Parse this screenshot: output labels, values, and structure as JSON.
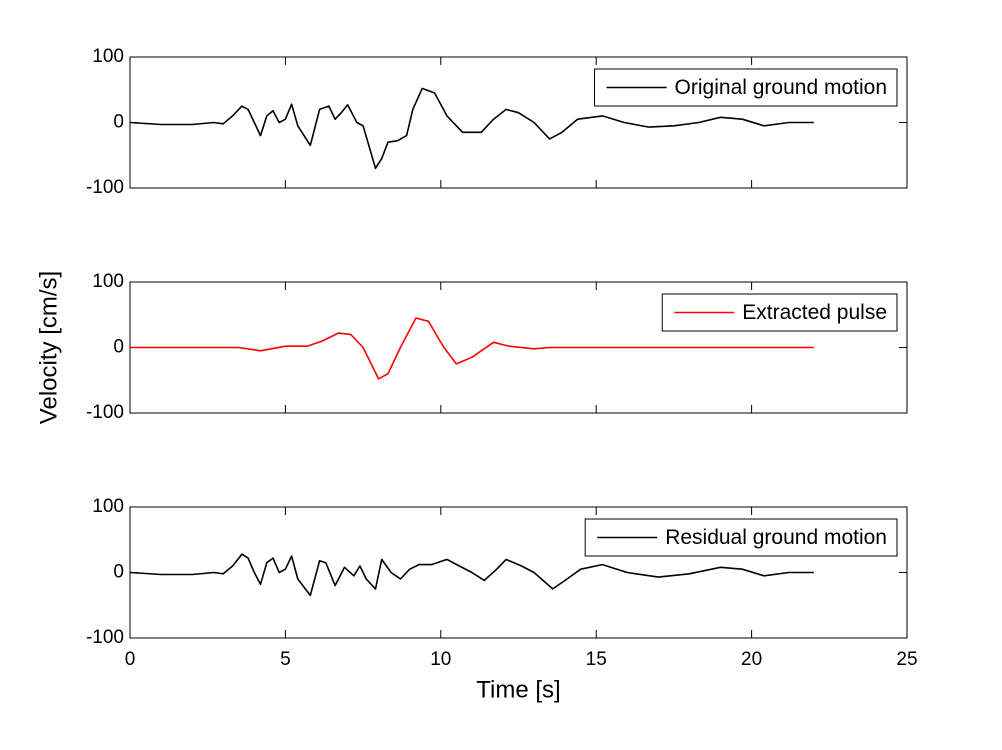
{
  "chart_data": [
    {
      "type": "line",
      "x": [
        0,
        1,
        2,
        2.7,
        3,
        3.3,
        3.6,
        3.8,
        4.0,
        4.2,
        4.4,
        4.6,
        4.8,
        5.0,
        5.2,
        5.4,
        5.8,
        6.1,
        6.4,
        6.6,
        6.8,
        7.0,
        7.3,
        7.5,
        7.9,
        8.1,
        8.3,
        8.6,
        8.9,
        9.1,
        9.4,
        9.8,
        10.2,
        10.4,
        10.7,
        11.3,
        11.7,
        12.1,
        12.5,
        13.0,
        13.5,
        13.9,
        14.4,
        15.2,
        15.9,
        16.7,
        17.5,
        18.3,
        19.0,
        19.7,
        20.4,
        21.2,
        22
      ],
      "series": [
        {
          "name": "Original ground motion",
          "color": "#000000",
          "values": [
            0,
            -3,
            -3,
            0,
            -2,
            10,
            25,
            20,
            0,
            -20,
            10,
            18,
            0,
            5,
            28,
            -5,
            -35,
            20,
            25,
            5,
            15,
            27,
            0,
            -5,
            -70,
            -55,
            -30,
            -28,
            -20,
            20,
            52,
            45,
            10,
            0,
            -15,
            -15,
            5,
            20,
            15,
            0,
            -25,
            -15,
            5,
            10,
            0,
            -7,
            -5,
            0,
            8,
            5,
            -5,
            0,
            0
          ]
        }
      ],
      "xlim": [
        0,
        25
      ],
      "ylim": [
        -100,
        100
      ],
      "yticks": [
        -100,
        0,
        100
      ],
      "legend": "upper right"
    },
    {
      "type": "line",
      "x": [
        0,
        3.5,
        4.2,
        5.0,
        5.7,
        6.2,
        6.7,
        7.1,
        7.5,
        8.0,
        8.3,
        8.7,
        9.2,
        9.6,
        10.1,
        10.5,
        11.0,
        11.7,
        12.2,
        13.0,
        13.5,
        22
      ],
      "series": [
        {
          "name": "Extracted pulse",
          "color": "#ff0000",
          "values": [
            0,
            0,
            -5,
            2,
            2,
            10,
            22,
            20,
            0,
            -48,
            -40,
            0,
            45,
            40,
            0,
            -25,
            -15,
            8,
            2,
            -2,
            0,
            0
          ]
        }
      ],
      "xlim": [
        0,
        25
      ],
      "ylim": [
        -100,
        100
      ],
      "yticks": [
        -100,
        0,
        100
      ],
      "legend": "upper right",
      "ylabel": "Velocity [cm/s]"
    },
    {
      "type": "line",
      "x": [
        0,
        1,
        2,
        2.7,
        3,
        3.3,
        3.6,
        3.8,
        4.0,
        4.2,
        4.4,
        4.6,
        4.8,
        5.0,
        5.2,
        5.4,
        5.8,
        6.1,
        6.3,
        6.6,
        6.9,
        7.2,
        7.4,
        7.6,
        7.9,
        8.1,
        8.4,
        8.7,
        9.0,
        9.3,
        9.7,
        10.2,
        10.6,
        11.0,
        11.4,
        11.8,
        12.1,
        12.6,
        13.0,
        13.6,
        14.0,
        14.5,
        15.2,
        16.0,
        17,
        18,
        19,
        19.7,
        20.4,
        21.2,
        22
      ],
      "series": [
        {
          "name": "Residual ground motion",
          "color": "#000000",
          "values": [
            0,
            -3,
            -3,
            0,
            -2,
            10,
            28,
            22,
            0,
            -18,
            15,
            22,
            0,
            5,
            25,
            -10,
            -35,
            18,
            15,
            -20,
            8,
            -5,
            10,
            -10,
            -25,
            20,
            0,
            -10,
            5,
            12,
            12,
            20,
            10,
            0,
            -12,
            5,
            20,
            10,
            0,
            -25,
            -12,
            5,
            12,
            0,
            -7,
            -2,
            8,
            5,
            -5,
            0,
            0
          ]
        }
      ],
      "xlim": [
        0,
        25
      ],
      "ylim": [
        -100,
        100
      ],
      "yticks": [
        -100,
        0,
        100
      ],
      "legend": "upper right",
      "xticks": [
        0,
        5,
        10,
        15,
        20,
        25
      ],
      "xlabel": "Time [s]"
    }
  ]
}
